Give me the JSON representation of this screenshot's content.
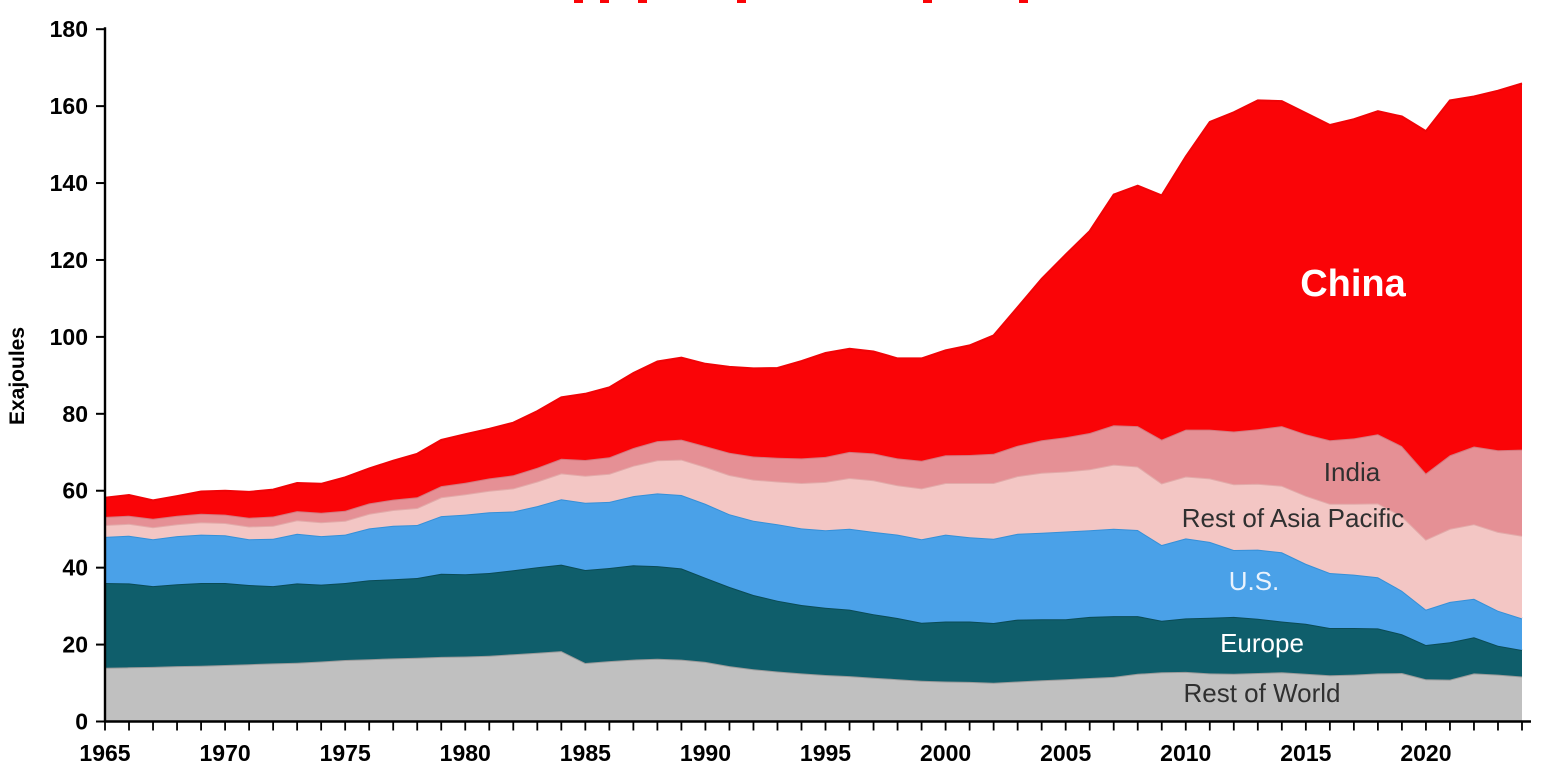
{
  "figure": {
    "ylabel": "Exajoules",
    "background": "#ffffff",
    "axis_color": "#000000",
    "tick_label_color": "#000000"
  },
  "chart_data": {
    "type": "area",
    "stacked": true,
    "title": "",
    "xlabel": "",
    "ylabel": "Exajoules",
    "grid": false,
    "legend_position": "inline-labels",
    "x_start": 1965,
    "x_end": 2024,
    "ylim": [
      0,
      180
    ],
    "y_ticks": [
      0,
      20,
      40,
      60,
      80,
      100,
      120,
      140,
      160,
      180
    ],
    "x_tick_labels": [
      1965,
      1970,
      1975,
      1980,
      1985,
      1990,
      1995,
      2000,
      2005,
      2010,
      2015,
      2020
    ],
    "x_minor_tick_every_years": 1,
    "units": "EJ",
    "series": [
      {
        "id": "row",
        "label": "Rest of World",
        "color": "#c0c0c0",
        "edge_color": "#9b9b9b",
        "label_color": "#303030",
        "values": [
          14.0,
          14.1,
          14.2,
          14.4,
          14.5,
          14.7,
          14.9,
          15.1,
          15.3,
          15.6,
          16.0,
          16.2,
          16.4,
          16.6,
          16.8,
          16.9,
          17.1,
          17.5,
          17.9,
          18.3,
          15.2,
          15.7,
          16.1,
          16.3,
          16.1,
          15.5,
          14.4,
          13.6,
          13.0,
          12.5,
          12.1,
          11.8,
          11.4,
          11.0,
          10.6,
          10.4,
          10.3,
          10.1,
          10.4,
          10.7,
          11.0,
          11.3,
          11.6,
          12.4,
          12.8,
          12.9,
          12.5,
          12.4,
          12.6,
          12.8,
          12.4,
          12.0,
          12.2,
          12.5,
          12.6,
          11.0,
          10.9,
          12.5,
          12.2,
          11.7
        ]
      },
      {
        "id": "europe",
        "label": "Europe",
        "color": "#0f5e6b",
        "edge_color": "#0a4b56",
        "label_color": "#ffffff",
        "values": [
          22.0,
          21.8,
          21.0,
          21.3,
          21.5,
          21.3,
          20.6,
          20.1,
          20.6,
          20.0,
          20.0,
          20.5,
          20.6,
          20.7,
          21.6,
          21.4,
          21.5,
          21.8,
          22.2,
          22.5,
          24.2,
          24.2,
          24.5,
          24.1,
          23.7,
          21.9,
          20.6,
          19.3,
          18.4,
          17.8,
          17.5,
          17.3,
          16.5,
          15.9,
          15.1,
          15.6,
          15.7,
          15.5,
          16.1,
          15.9,
          15.6,
          15.9,
          15.8,
          15.0,
          13.4,
          13.9,
          14.5,
          14.8,
          14.1,
          13.2,
          13.0,
          12.3,
          12.1,
          11.7,
          10.1,
          8.9,
          9.7,
          9.4,
          7.5,
          6.9
        ]
      },
      {
        "id": "us",
        "label": "U.S.",
        "color": "#4aa1e8",
        "edge_color": "#3590d8",
        "label_color": "#e9f3fd",
        "values": [
          12.0,
          12.4,
          12.2,
          12.5,
          12.6,
          12.4,
          11.9,
          12.3,
          12.9,
          12.6,
          12.6,
          13.5,
          13.9,
          13.8,
          15.0,
          15.5,
          15.8,
          15.3,
          15.9,
          17.0,
          17.5,
          17.2,
          18.0,
          18.9,
          19.1,
          19.2,
          18.9,
          19.3,
          19.9,
          19.9,
          20.1,
          21.0,
          21.4,
          21.7,
          21.7,
          22.6,
          21.9,
          21.9,
          22.3,
          22.5,
          22.8,
          22.5,
          22.7,
          22.4,
          19.7,
          20.8,
          19.7,
          17.4,
          18.0,
          18.0,
          15.6,
          14.3,
          13.9,
          13.3,
          11.3,
          9.2,
          10.5,
          10.0,
          9.1,
          8.2
        ]
      },
      {
        "id": "roap",
        "label": "Rest of Asia Pacific",
        "color": "#f3c6c4",
        "edge_color": "#e2aaa9",
        "label_color": "#303030",
        "values": [
          3.1,
          3.1,
          3.1,
          3.1,
          3.2,
          3.2,
          3.3,
          3.4,
          3.5,
          3.6,
          3.6,
          3.8,
          4.1,
          4.4,
          4.9,
          5.3,
          5.6,
          6.0,
          6.4,
          6.7,
          7.0,
          7.3,
          7.9,
          8.6,
          9.2,
          9.6,
          10.2,
          10.7,
          11.1,
          11.8,
          12.6,
          13.2,
          13.4,
          12.8,
          13.2,
          13.4,
          14.1,
          14.5,
          15.0,
          15.6,
          15.6,
          15.9,
          16.7,
          16.5,
          16.0,
          16.1,
          16.5,
          17.1,
          17.1,
          17.3,
          17.7,
          18.0,
          18.4,
          19.2,
          19.4,
          18.2,
          19.0,
          19.4,
          20.5,
          21.5
        ]
      },
      {
        "id": "india",
        "label": "India",
        "color": "#e59095",
        "edge_color": "#d5787e",
        "label_color": "#303030",
        "values": [
          2.1,
          2.1,
          2.2,
          2.2,
          2.2,
          2.2,
          2.3,
          2.4,
          2.4,
          2.5,
          2.6,
          2.7,
          2.7,
          2.8,
          2.9,
          3.0,
          3.2,
          3.4,
          3.6,
          3.8,
          4.1,
          4.3,
          4.6,
          5.0,
          5.2,
          5.4,
          5.8,
          6.0,
          6.2,
          6.4,
          6.5,
          6.8,
          7.0,
          7.0,
          7.2,
          7.2,
          7.3,
          7.6,
          7.9,
          8.4,
          8.9,
          9.4,
          10.2,
          10.5,
          11.4,
          12.2,
          12.7,
          13.7,
          14.2,
          15.5,
          16.0,
          16.5,
          17.0,
          18.0,
          18.2,
          17.2,
          19.1,
          20.2,
          21.2,
          22.4
        ]
      },
      {
        "id": "china",
        "label": "China",
        "color": "#fa0407",
        "edge_color": "#f00306",
        "label_color": "#ffffff",
        "values": [
          5.0,
          5.4,
          4.8,
          5.1,
          5.8,
          6.2,
          6.7,
          7.0,
          7.3,
          7.5,
          8.7,
          9.1,
          10.1,
          11.3,
          12.0,
          12.6,
          12.9,
          13.7,
          14.7,
          16.0,
          17.2,
          18.2,
          19.5,
          20.7,
          21.3,
          21.4,
          22.3,
          22.9,
          23.3,
          25.3,
          27.0,
          26.8,
          26.5,
          26.0,
          26.6,
          27.3,
          28.5,
          30.8,
          36.0,
          42.0,
          47.5,
          52.5,
          60.0,
          62.5,
          63.5,
          71.0,
          80.0,
          83.0,
          85.5,
          84.5,
          83.5,
          82.0,
          83.0,
          84.0,
          85.7,
          89.0,
          92.3,
          91.0,
          93.5,
          95.2
        ]
      }
    ],
    "cropped_title_marks_x": [
      574,
      600,
      638,
      737,
      923,
      1019
    ]
  }
}
